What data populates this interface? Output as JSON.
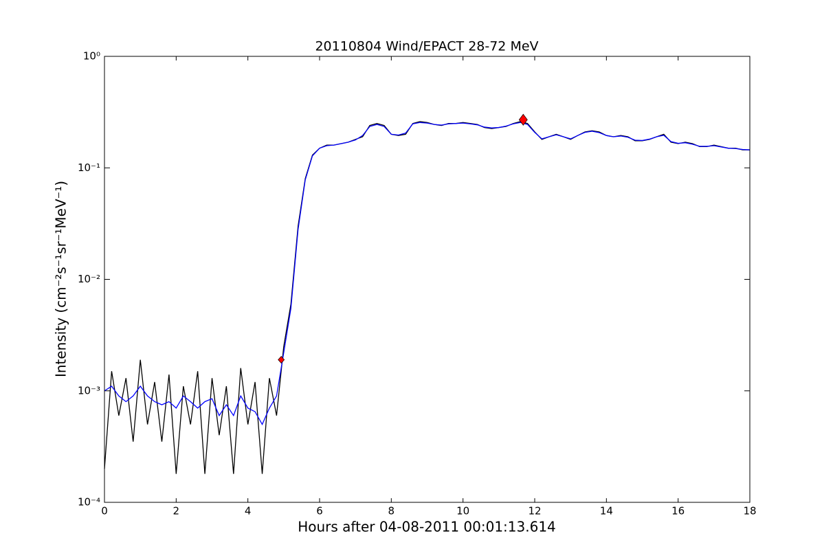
{
  "chart_data": {
    "type": "line",
    "title": "20110804 Wind/EPACT 28-72 MeV",
    "x_label": "Hours after 04-08-2011 00:01:13.614",
    "y_label": "Intensity (cm⁻²s⁻¹sr⁻¹MeV⁻¹)",
    "log_y": true,
    "xlim": [
      0,
      18
    ],
    "xticks": [
      0,
      2,
      4,
      6,
      8,
      10,
      12,
      14,
      16,
      18
    ],
    "ylim": [
      0.0001,
      1
    ],
    "yticks": [
      {
        "value": 0.0001,
        "label": "10⁻⁴"
      },
      {
        "value": 0.001,
        "label": "10⁻³"
      },
      {
        "value": 0.01,
        "label": "10⁻²"
      },
      {
        "value": 0.1,
        "label": "10⁻¹"
      },
      {
        "value": 1,
        "label": "10⁰"
      }
    ],
    "x": [
      0,
      0.2,
      0.4,
      0.6,
      0.8,
      1,
      1.2,
      1.4,
      1.6,
      1.8,
      2,
      2.2,
      2.4,
      2.6,
      2.8,
      3,
      3.2,
      3.4,
      3.6,
      3.8,
      4,
      4.2,
      4.4,
      4.6,
      4.8,
      5,
      5.2,
      5.4,
      5.6,
      5.8,
      6,
      6.2,
      6.4,
      6.6,
      6.8,
      7,
      7.2,
      7.4,
      7.6,
      7.8,
      8,
      8.2,
      8.4,
      8.6,
      8.8,
      9,
      9.2,
      9.4,
      9.6,
      9.8,
      10,
      10.2,
      10.4,
      10.6,
      10.8,
      11,
      11.2,
      11.4,
      11.6,
      11.8,
      12,
      12.2,
      12.4,
      12.6,
      12.8,
      13,
      13.2,
      13.4,
      13.6,
      13.8,
      14,
      14.2,
      14.4,
      14.6,
      14.8,
      15,
      15.2,
      15.4,
      15.6,
      15.8,
      16,
      16.2,
      16.4,
      16.6,
      16.8,
      17,
      17.2,
      17.4,
      17.6,
      17.8,
      18
    ],
    "series": [
      {
        "color": "#000000",
        "values": [
          0.0002,
          0.0015,
          0.0006,
          0.0013,
          0.00035,
          0.0019,
          0.0005,
          0.0012,
          0.00035,
          0.0014,
          0.00018,
          0.0011,
          0.0005,
          0.0015,
          0.00018,
          0.0013,
          0.0004,
          0.0011,
          0.00018,
          0.0016,
          0.0005,
          0.0012,
          0.00018,
          0.0013,
          0.0006,
          0.0025,
          0.006,
          0.03,
          0.08,
          0.13,
          0.15,
          0.16,
          0.16,
          0.165,
          0.17,
          0.18,
          0.19,
          0.24,
          0.25,
          0.24,
          0.2,
          0.195,
          0.2,
          0.25,
          0.26,
          0.255,
          0.245,
          0.24,
          0.25,
          0.25,
          0.255,
          0.25,
          0.245,
          0.23,
          0.225,
          0.23,
          0.235,
          0.25,
          0.26,
          0.25,
          0.21,
          0.18,
          0.19,
          0.2,
          0.19,
          0.18,
          0.195,
          0.21,
          0.215,
          0.21,
          0.195,
          0.19,
          0.195,
          0.19,
          0.175,
          0.175,
          0.18,
          0.19,
          0.2,
          0.17,
          0.165,
          0.17,
          0.165,
          0.155,
          0.155,
          0.16,
          0.155,
          0.15,
          0.15,
          0.145,
          0.145
        ]
      },
      {
        "color": "#0000ff",
        "values": [
          0.001,
          0.0011,
          0.0009,
          0.0008,
          0.0009,
          0.0011,
          0.0009,
          0.0008,
          0.00075,
          0.0008,
          0.0007,
          0.0009,
          0.0008,
          0.0007,
          0.0008,
          0.00085,
          0.0006,
          0.00075,
          0.0006,
          0.0009,
          0.0007,
          0.00065,
          0.0005,
          0.0007,
          0.0009,
          0.0022,
          0.0055,
          0.028,
          0.078,
          0.128,
          0.15,
          0.158,
          0.16,
          0.165,
          0.17,
          0.178,
          0.195,
          0.235,
          0.245,
          0.235,
          0.2,
          0.197,
          0.205,
          0.248,
          0.255,
          0.252,
          0.245,
          0.242,
          0.248,
          0.25,
          0.252,
          0.248,
          0.243,
          0.232,
          0.228,
          0.23,
          0.237,
          0.248,
          0.255,
          0.245,
          0.208,
          0.182,
          0.19,
          0.198,
          0.19,
          0.182,
          0.195,
          0.208,
          0.213,
          0.207,
          0.195,
          0.19,
          0.193,
          0.188,
          0.177,
          0.176,
          0.181,
          0.19,
          0.196,
          0.172,
          0.166,
          0.168,
          0.163,
          0.156,
          0.156,
          0.158,
          0.154,
          0.15,
          0.149,
          0.146,
          0.145
        ]
      }
    ],
    "markers_color": "#ff0000",
    "markers": [
      {
        "x": 4.93,
        "y": 0.0019
      },
      {
        "x": 11.68,
        "y": 0.27
      }
    ]
  }
}
